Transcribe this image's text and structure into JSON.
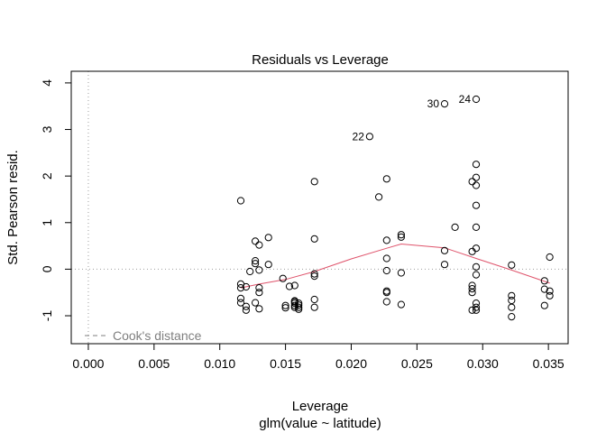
{
  "chart_data": {
    "type": "scatter",
    "title": "Residuals vs Leverage",
    "xlabel": "Leverage",
    "xlabel_sub": "glm(value ~ latitude)",
    "ylabel": "Std. Pearson resid.",
    "xlim": [
      -0.0013,
      0.0365
    ],
    "ylim": [
      -1.6,
      4.25
    ],
    "xticks": [
      "0.000",
      "0.005",
      "0.010",
      "0.015",
      "0.020",
      "0.025",
      "0.030",
      "0.035"
    ],
    "xtick_values": [
      0.0,
      0.005,
      0.01,
      0.015,
      0.02,
      0.025,
      0.03,
      0.035
    ],
    "yticks": [
      "-1",
      "0",
      "1",
      "2",
      "3",
      "4"
    ],
    "ytick_values": [
      -1,
      0,
      1,
      2,
      3,
      4
    ],
    "legend": {
      "label": "Cook's distance",
      "position": "bottom-left"
    },
    "smoother_color": "#DF536B",
    "reference_line_color": "#9e9e9e",
    "points": [
      [
        0.0116,
        1.47
      ],
      [
        0.0116,
        -0.32
      ],
      [
        0.0116,
        -0.4
      ],
      [
        0.0116,
        -0.63
      ],
      [
        0.0116,
        -0.72
      ],
      [
        0.012,
        -0.8
      ],
      [
        0.012,
        -0.88
      ],
      [
        0.012,
        -0.38
      ],
      [
        0.0123,
        -0.05
      ],
      [
        0.0127,
        0.6
      ],
      [
        0.0127,
        0.18
      ],
      [
        0.0127,
        0.12
      ],
      [
        0.0127,
        -0.72
      ],
      [
        0.013,
        0.52
      ],
      [
        0.013,
        -0.02
      ],
      [
        0.013,
        -0.4
      ],
      [
        0.013,
        -0.5
      ],
      [
        0.013,
        -0.85
      ],
      [
        0.0137,
        0.68
      ],
      [
        0.0137,
        0.1
      ],
      [
        0.0148,
        -0.2
      ],
      [
        0.015,
        -0.78
      ],
      [
        0.015,
        -0.83
      ],
      [
        0.0153,
        -0.37
      ],
      [
        0.0157,
        -0.68
      ],
      [
        0.0157,
        -0.7
      ],
      [
        0.0157,
        -0.73
      ],
      [
        0.0157,
        -0.78
      ],
      [
        0.0157,
        -0.82
      ],
      [
        0.0157,
        -0.35
      ],
      [
        0.016,
        -0.73
      ],
      [
        0.016,
        -0.77
      ],
      [
        0.016,
        -0.82
      ],
      [
        0.016,
        -0.86
      ],
      [
        0.0172,
        1.88
      ],
      [
        0.0172,
        0.65
      ],
      [
        0.0172,
        -0.1
      ],
      [
        0.0172,
        -0.15
      ],
      [
        0.0172,
        -0.65
      ],
      [
        0.0172,
        -0.82
      ],
      [
        0.0221,
        1.55
      ],
      [
        0.0227,
        1.94
      ],
      [
        0.0227,
        0.62
      ],
      [
        0.0227,
        0.23
      ],
      [
        0.0227,
        -0.03
      ],
      [
        0.0227,
        -0.47
      ],
      [
        0.0227,
        -0.5
      ],
      [
        0.0227,
        -0.7
      ],
      [
        0.0238,
        0.74
      ],
      [
        0.0238,
        0.69
      ],
      [
        0.0238,
        -0.08
      ],
      [
        0.0238,
        -0.76
      ],
      [
        0.0271,
        0.4
      ],
      [
        0.0271,
        0.1
      ],
      [
        0.0279,
        0.9
      ],
      [
        0.0292,
        1.88
      ],
      [
        0.0292,
        0.38
      ],
      [
        0.0292,
        -0.35
      ],
      [
        0.0292,
        -0.42
      ],
      [
        0.0292,
        -0.5
      ],
      [
        0.0292,
        -0.88
      ],
      [
        0.0295,
        2.25
      ],
      [
        0.0295,
        1.97
      ],
      [
        0.0295,
        1.8
      ],
      [
        0.0295,
        1.37
      ],
      [
        0.0295,
        0.9
      ],
      [
        0.0295,
        0.45
      ],
      [
        0.0295,
        0.05
      ],
      [
        0.0295,
        -0.12
      ],
      [
        0.0295,
        -0.73
      ],
      [
        0.0295,
        -0.82
      ],
      [
        0.0295,
        -0.88
      ],
      [
        0.0322,
        0.09
      ],
      [
        0.0322,
        -0.57
      ],
      [
        0.0322,
        -0.67
      ],
      [
        0.0322,
        -0.82
      ],
      [
        0.0322,
        -1.02
      ],
      [
        0.0347,
        -0.25
      ],
      [
        0.0347,
        -0.43
      ],
      [
        0.0347,
        -0.78
      ],
      [
        0.0351,
        0.26
      ],
      [
        0.0351,
        -0.47
      ],
      [
        0.0351,
        -0.57
      ]
    ],
    "labeled_points": [
      {
        "label": "24",
        "x": 0.0295,
        "y": 3.65
      },
      {
        "label": "30",
        "x": 0.0271,
        "y": 3.55
      },
      {
        "label": "22",
        "x": 0.0214,
        "y": 2.85
      }
    ],
    "smoother": [
      [
        0.0116,
        -0.4
      ],
      [
        0.013,
        -0.32
      ],
      [
        0.015,
        -0.22
      ],
      [
        0.0172,
        -0.05
      ],
      [
        0.02,
        0.22
      ],
      [
        0.0227,
        0.45
      ],
      [
        0.0238,
        0.54
      ],
      [
        0.0271,
        0.46
      ],
      [
        0.0295,
        0.23
      ],
      [
        0.0322,
        -0.02
      ],
      [
        0.0351,
        -0.3
      ]
    ]
  }
}
